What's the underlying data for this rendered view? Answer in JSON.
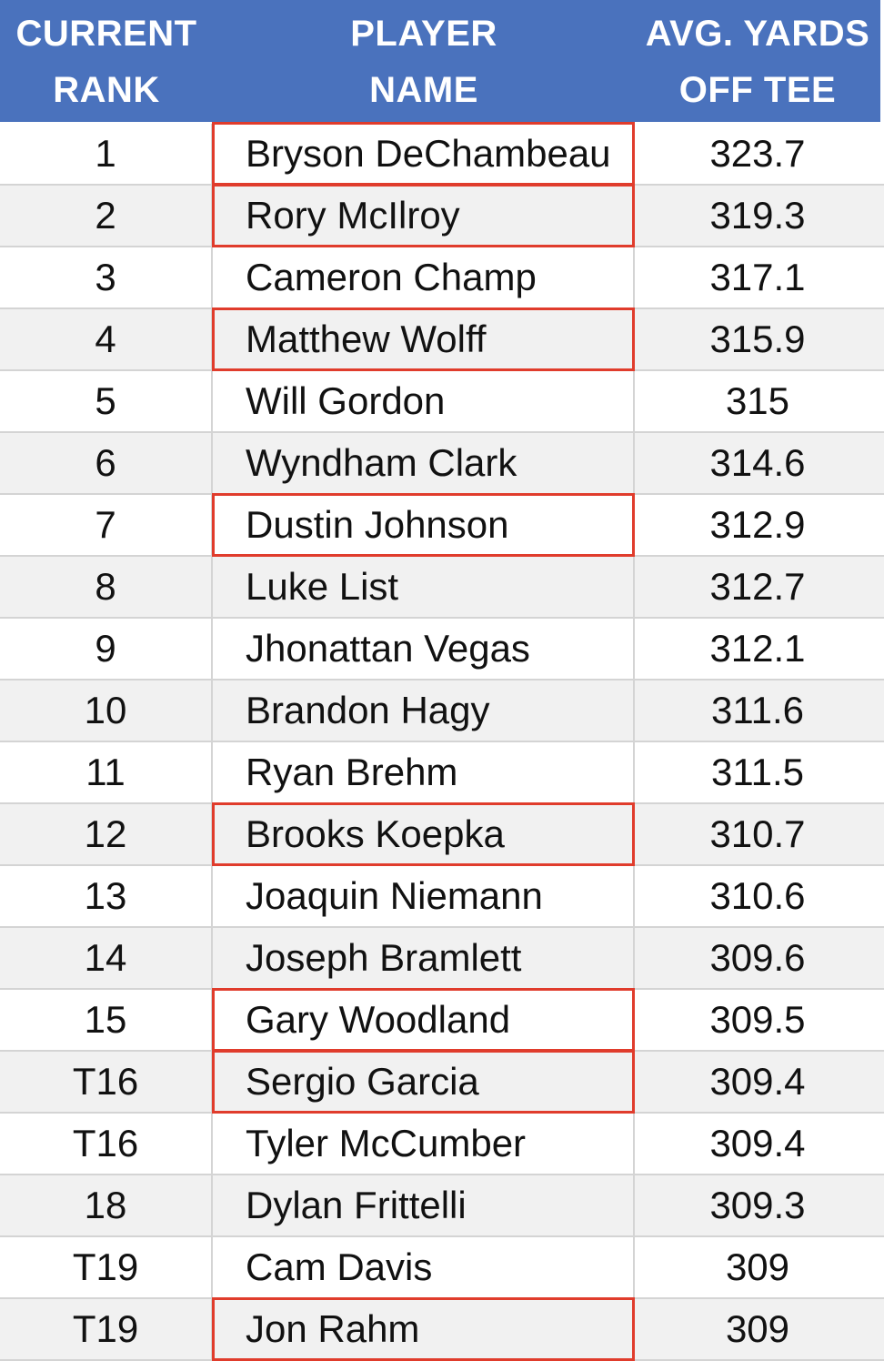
{
  "table": {
    "headers": [
      "CURRENT\nRANK",
      "PLAYER\nNAME",
      "AVG. YARDS\nOFF TEE"
    ],
    "highlight_color": "#e03c2c",
    "header_color": "#4a72bd",
    "rows": [
      {
        "rank": "1",
        "name": "Bryson DeChambeau",
        "yards": "323.7",
        "highlighted": true
      },
      {
        "rank": "2",
        "name": "Rory McIlroy",
        "yards": "319.3",
        "highlighted": true
      },
      {
        "rank": "3",
        "name": "Cameron Champ",
        "yards": "317.1",
        "highlighted": false
      },
      {
        "rank": "4",
        "name": "Matthew Wolff",
        "yards": "315.9",
        "highlighted": true
      },
      {
        "rank": "5",
        "name": "Will Gordon",
        "yards": "315",
        "highlighted": false
      },
      {
        "rank": "6",
        "name": "Wyndham Clark",
        "yards": "314.6",
        "highlighted": false
      },
      {
        "rank": "7",
        "name": "Dustin Johnson",
        "yards": "312.9",
        "highlighted": true
      },
      {
        "rank": "8",
        "name": "Luke List",
        "yards": "312.7",
        "highlighted": false
      },
      {
        "rank": "9",
        "name": "Jhonattan Vegas",
        "yards": "312.1",
        "highlighted": false
      },
      {
        "rank": "10",
        "name": "Brandon Hagy",
        "yards": "311.6",
        "highlighted": false
      },
      {
        "rank": "11",
        "name": "Ryan Brehm",
        "yards": "311.5",
        "highlighted": false
      },
      {
        "rank": "12",
        "name": "Brooks Koepka",
        "yards": "310.7",
        "highlighted": true
      },
      {
        "rank": "13",
        "name": "Joaquin Niemann",
        "yards": "310.6",
        "highlighted": false
      },
      {
        "rank": "14",
        "name": "Joseph Bramlett",
        "yards": "309.6",
        "highlighted": false
      },
      {
        "rank": "15",
        "name": "Gary Woodland",
        "yards": "309.5",
        "highlighted": true
      },
      {
        "rank": "T16",
        "name": "Sergio Garcia",
        "yards": "309.4",
        "highlighted": true
      },
      {
        "rank": "T16",
        "name": "Tyler McCumber",
        "yards": "309.4",
        "highlighted": false
      },
      {
        "rank": "18",
        "name": "Dylan Frittelli",
        "yards": "309.3",
        "highlighted": false
      },
      {
        "rank": "T19",
        "name": "Cam Davis",
        "yards": "309",
        "highlighted": false
      },
      {
        "rank": "T19",
        "name": "Jon Rahm",
        "yards": "309",
        "highlighted": true
      }
    ]
  }
}
